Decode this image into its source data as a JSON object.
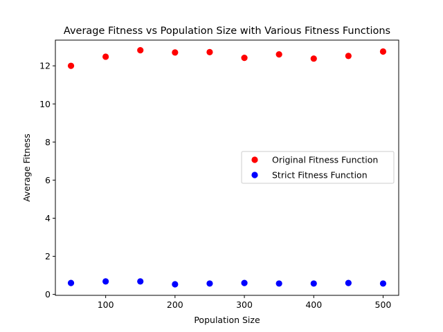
{
  "chart_data": {
    "type": "scatter",
    "title": "Average Fitness vs Population Size with Various Fitness Functions",
    "xlabel": "Population Size",
    "ylabel": "Average Fitness",
    "xlim": [
      27.5,
      522.5
    ],
    "ylim": [
      -0.05,
      13.35
    ],
    "xticks": [
      100,
      200,
      300,
      400,
      500
    ],
    "yticks": [
      0,
      2,
      4,
      6,
      8,
      10,
      12
    ],
    "grid": false,
    "legend_position": "center-right",
    "x": [
      50,
      100,
      150,
      200,
      250,
      300,
      350,
      400,
      450,
      500
    ],
    "series": [
      {
        "name": "Original Fitness Function",
        "color": "#ff0000",
        "values": [
          12.0,
          12.48,
          12.82,
          12.7,
          12.72,
          12.42,
          12.6,
          12.38,
          12.52,
          12.75
        ]
      },
      {
        "name": "Strict Fitness Function",
        "color": "#0000ff",
        "values": [
          0.6,
          0.68,
          0.68,
          0.53,
          0.57,
          0.6,
          0.57,
          0.57,
          0.6,
          0.57
        ]
      }
    ]
  }
}
